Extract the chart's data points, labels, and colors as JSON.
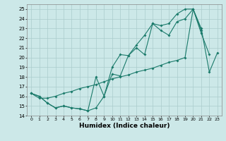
{
  "xlabel": "Humidex (Indice chaleur)",
  "bg_color": "#cce8e8",
  "grid_color": "#aacccc",
  "line_color": "#1a7a6a",
  "xlim": [
    -0.5,
    23.5
  ],
  "ylim": [
    14,
    25.5
  ],
  "yticks": [
    14,
    15,
    16,
    17,
    18,
    19,
    20,
    21,
    22,
    23,
    24,
    25
  ],
  "xticks": [
    0,
    1,
    2,
    3,
    4,
    5,
    6,
    7,
    8,
    9,
    10,
    11,
    12,
    13,
    14,
    15,
    16,
    17,
    18,
    19,
    20,
    21,
    22,
    23
  ],
  "series1_x": [
    0,
    1,
    2,
    3,
    4,
    5,
    6,
    7,
    8,
    9,
    10,
    11,
    12,
    13,
    14,
    15,
    16,
    17,
    18,
    19,
    20,
    21,
    22,
    23
  ],
  "series1_y": [
    16.3,
    16.0,
    15.3,
    14.8,
    15.0,
    14.8,
    14.7,
    14.5,
    14.8,
    16.0,
    18.3,
    18.1,
    20.2,
    21.0,
    20.3,
    23.5,
    22.8,
    22.3,
    23.7,
    24.0,
    25.0,
    22.5,
    20.3,
    null
  ],
  "series2_x": [
    0,
    1,
    2,
    3,
    4,
    5,
    6,
    7,
    8,
    9,
    10,
    11,
    12,
    13,
    14,
    15,
    16,
    17,
    18,
    19,
    20,
    21,
    22,
    23
  ],
  "series2_y": [
    16.3,
    16.0,
    15.3,
    14.8,
    15.0,
    14.8,
    14.7,
    14.5,
    18.0,
    16.0,
    19.0,
    20.3,
    20.2,
    21.3,
    22.3,
    23.5,
    23.3,
    23.5,
    24.5,
    25.0,
    25.0,
    22.8,
    null,
    null
  ],
  "series3_x": [
    0,
    1,
    2,
    3,
    4,
    5,
    6,
    7,
    8,
    9,
    10,
    11,
    12,
    13,
    14,
    15,
    16,
    17,
    18,
    19,
    20,
    21,
    22,
    23
  ],
  "series3_y": [
    16.3,
    15.8,
    15.8,
    16.0,
    16.3,
    16.5,
    16.8,
    17.0,
    17.2,
    17.5,
    17.8,
    18.0,
    18.2,
    18.5,
    18.7,
    18.9,
    19.2,
    19.5,
    19.7,
    20.0,
    25.0,
    23.0,
    18.5,
    20.5
  ]
}
